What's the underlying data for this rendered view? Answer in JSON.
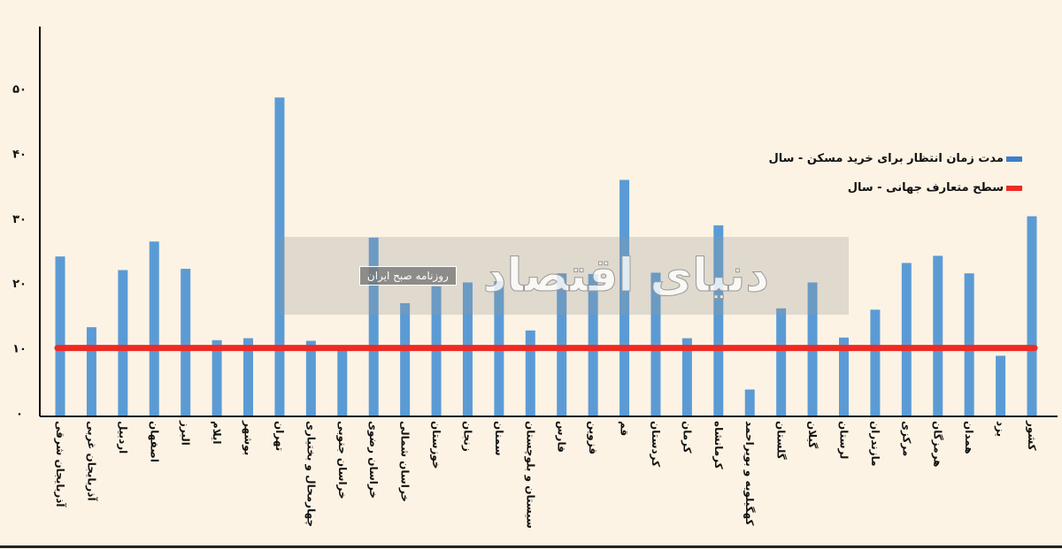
{
  "chart_data": {
    "type": "bar",
    "title": "",
    "xlabel": "",
    "ylabel": "",
    "ylim": [
      0,
      50
    ],
    "yticks": [
      "۰",
      "۱۰",
      "۲۰",
      "۳۰",
      "۴۰",
      "۵۰"
    ],
    "ytick_values": [
      0,
      10,
      20,
      30,
      40,
      50
    ],
    "categories": [
      "آذربایجان شرقی",
      "آذربایجان غربی",
      "اردبیل",
      "اصفهان",
      "البرز",
      "ایلام",
      "بوشهر",
      "تهران",
      "چهارمحال و بختیاری",
      "خراسان جنوبی",
      "خراسان رضوی",
      "خراسان شمالی",
      "خوزستان",
      "زنجان",
      "سمنان",
      "سیستان و بلوچستان",
      "فارس",
      "قزوین",
      "قم",
      "کردستان",
      "کرمان",
      "کرمانشاه",
      "کهگیلویه و بویراحمد",
      "گلستان",
      "گیلان",
      "لرستان",
      "مازندران",
      "مرکزی",
      "هرمزگان",
      "همدان",
      "یزد",
      "کشور"
    ],
    "series": [
      {
        "name": "مدت زمان انتظار برای خرید مسکن - سال",
        "color": "#5b9bd5",
        "type": "bar",
        "values": [
          24.1,
          13.2,
          22.0,
          26.4,
          22.2,
          11.2,
          11.5,
          48.6,
          11.1,
          9.7,
          27.0,
          16.9,
          19.5,
          20.1,
          20.3,
          12.7,
          21.5,
          21.4,
          35.9,
          21.6,
          11.5,
          28.9,
          3.6,
          16.1,
          20.1,
          11.6,
          15.9,
          23.1,
          24.2,
          21.5,
          8.8,
          30.3
        ]
      },
      {
        "name": "سطح متعارف جهانی - سال",
        "color": "#ee2a24",
        "type": "line",
        "value": 10
      }
    ],
    "legend_position": "top-right",
    "grid": false
  },
  "watermark": {
    "logo": "دنیای اقتصاد",
    "subtitle": "روزنامه صبح ایران"
  }
}
